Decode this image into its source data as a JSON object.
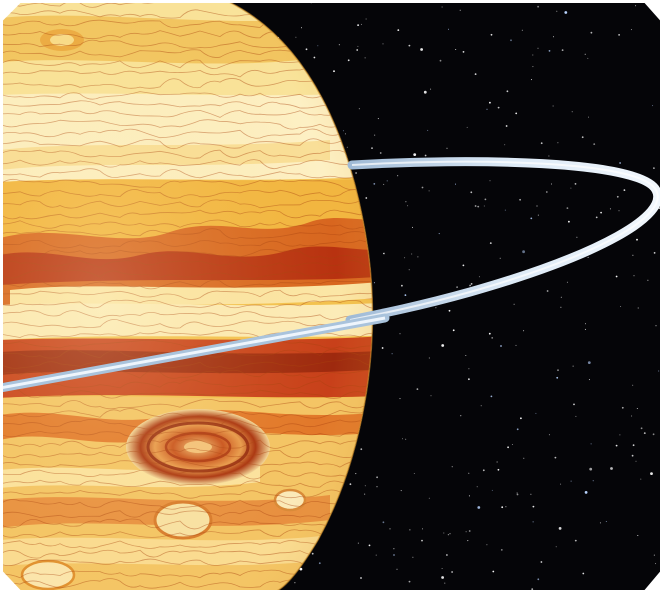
{
  "image": {
    "subject": "planet-with-ring",
    "background_color": "#ffffff",
    "space_color": "#050508",
    "planet_colors": {
      "light": "#fbeaa8",
      "mid": "#f3c24f",
      "orange": "#e58a2a",
      "red": "#c03a13",
      "dark_red": "#8c1f0a"
    },
    "ring_colors": {
      "outer": "#b8d2ea",
      "inner": "#e8f2fb"
    }
  }
}
